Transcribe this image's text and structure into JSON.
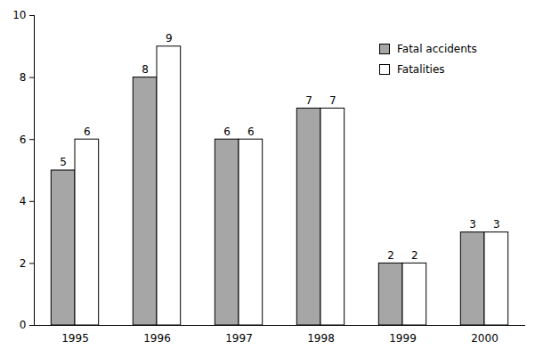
{
  "chart_data": {
    "type": "bar",
    "categories": [
      "1995",
      "1996",
      "1997",
      "1998",
      "1999",
      "2000"
    ],
    "series": [
      {
        "name": "Fatal accidents",
        "color": "#a6a6a6",
        "values": [
          5,
          8,
          6,
          7,
          2,
          3
        ]
      },
      {
        "name": "Fatalities",
        "color": "#ffffff",
        "values": [
          6,
          9,
          6,
          7,
          2,
          3
        ]
      }
    ],
    "ylim": [
      0,
      10
    ],
    "yticks": [
      0,
      2,
      4,
      6,
      8,
      10
    ],
    "grid": false,
    "legend": "top-right",
    "data_labels": true
  }
}
